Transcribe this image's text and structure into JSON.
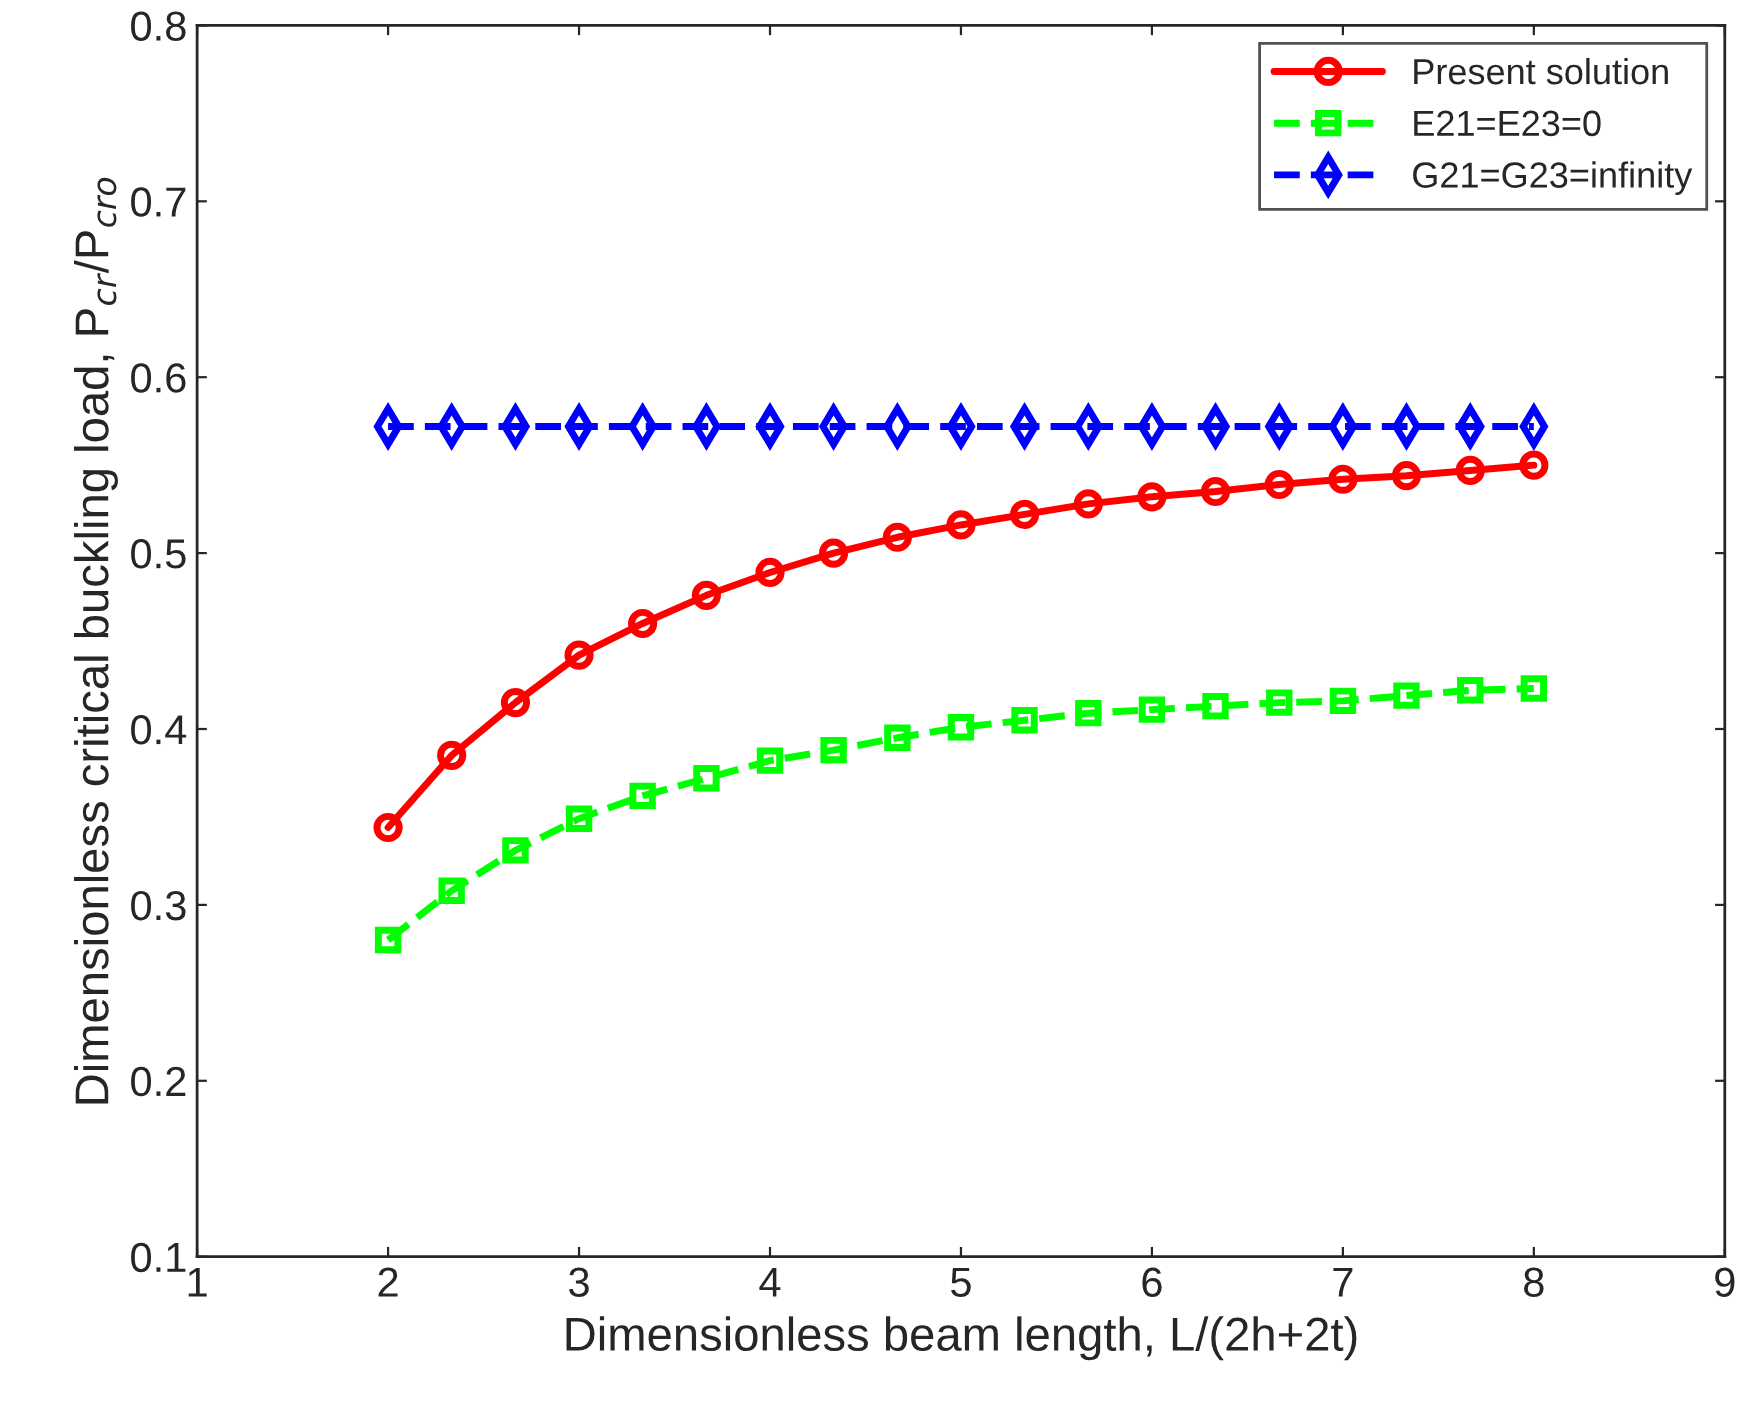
{
  "chart_data": {
    "type": "line",
    "xlabel": "Dimensionless beam length, L/(2h+2t)",
    "ylabel": "Dimensionless critical buckling load, P$_{cr}$/P$_{cro}$",
    "x": [
      2,
      2.333,
      2.667,
      3,
      3.333,
      3.667,
      4,
      4.333,
      4.667,
      5,
      5.333,
      5.667,
      6,
      6.333,
      6.667,
      7,
      7.333,
      7.667,
      8
    ],
    "series": [
      {
        "name": "Present solution",
        "color": "#ff0000",
        "marker": "circle",
        "line_style": "solid",
        "values": [
          0.344,
          0.385,
          0.415,
          0.442,
          0.46,
          0.476,
          0.489,
          0.5,
          0.509,
          0.516,
          0.522,
          0.528,
          0.532,
          0.535,
          0.539,
          0.542,
          0.544,
          0.547,
          0.55
        ]
      },
      {
        "name": "E21=E23=0",
        "color": "#00ff00",
        "marker": "square",
        "line_style": "dashed",
        "values": [
          0.28,
          0.308,
          0.331,
          0.349,
          0.362,
          0.372,
          0.382,
          0.388,
          0.395,
          0.401,
          0.405,
          0.409,
          0.411,
          0.413,
          0.415,
          0.416,
          0.419,
          0.422,
          0.423
        ]
      },
      {
        "name": "G21=G23=infinity",
        "color": "#0000ff",
        "marker": "diamond",
        "line_style": "dashed",
        "values": [
          0.572,
          0.572,
          0.572,
          0.572,
          0.572,
          0.572,
          0.572,
          0.572,
          0.572,
          0.572,
          0.572,
          0.572,
          0.572,
          0.572,
          0.572,
          0.572,
          0.572,
          0.572,
          0.572
        ]
      }
    ],
    "xlim": [
      1,
      9
    ],
    "xticks": [
      1,
      2,
      3,
      4,
      5,
      6,
      7,
      8,
      9
    ],
    "ylim": [
      0.1,
      0.8
    ],
    "yticks": [
      0.1,
      0.2,
      0.3,
      0.4,
      0.5,
      0.6,
      0.7,
      0.8
    ],
    "grid": false,
    "legend": "top right"
  }
}
